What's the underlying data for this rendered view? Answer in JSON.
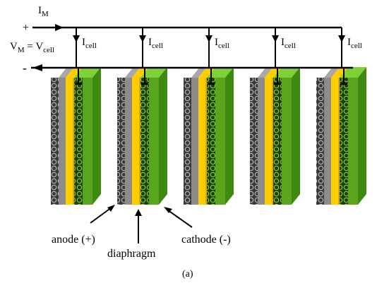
{
  "supply": {
    "plus_sign": "+",
    "minus_sign": "-",
    "current_main": "I",
    "current_main_sub": "M",
    "voltage_lhs": "V",
    "voltage_lhs_sub": "M",
    "voltage_eq": " = V",
    "voltage_rhs_sub": "cell"
  },
  "cell_current": {
    "main": "I",
    "sub": "cell"
  },
  "cells": [
    {
      "id": 1
    },
    {
      "id": 2
    },
    {
      "id": 3
    },
    {
      "id": 4
    },
    {
      "id": 5
    }
  ],
  "labels": {
    "anode": "anode (+)",
    "diaphragm": "diaphragm",
    "cathode": "cathode (-)",
    "caption": "(a)"
  },
  "colors": {
    "anode_dark": "#3a3a3a",
    "anode_face": "#8c8c8c",
    "anode_top": "#a8a8a8",
    "diaphragm": "#ffcc00",
    "diaphragm_side": "#e0a800",
    "cathode_face": "#5aa51e",
    "cathode_side": "#3e8a10",
    "cathode_top": "#7fd13a",
    "wire": "#000000"
  }
}
